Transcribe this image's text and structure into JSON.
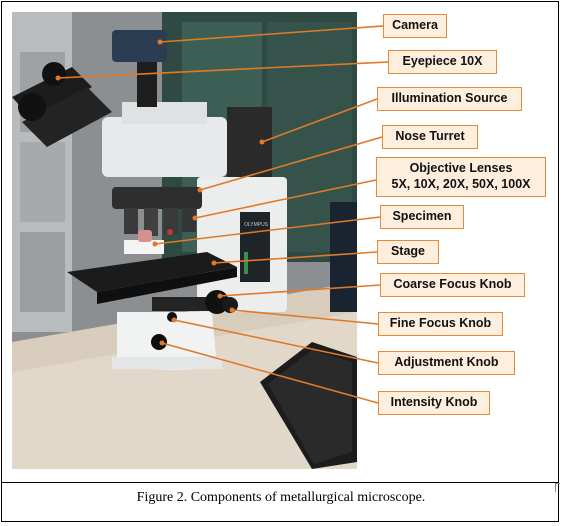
{
  "caption": "Figure 2. Components of metallurgical microscope.",
  "photo": {
    "brand_text": "OLYMPUS",
    "model_text": "BX51M"
  },
  "labels": {
    "camera": "Camera",
    "eyepiece": "Eyepiece 10X",
    "illumination": "Illumination Source",
    "nose_turret": "Nose Turret",
    "objective_line1": "Objective Lenses",
    "objective_line2": "5X, 10X, 20X, 50X, 100X",
    "specimen": "Specimen",
    "stage": "Stage",
    "coarse": "Coarse Focus Knob",
    "fine": "Fine Focus Knob",
    "adjustment": "Adjustment Knob",
    "intensity": "Intensity Knob"
  },
  "colors": {
    "label_fill": "#fdeedd",
    "label_border": "#e38a3c",
    "leader_line": "#e07a28"
  }
}
